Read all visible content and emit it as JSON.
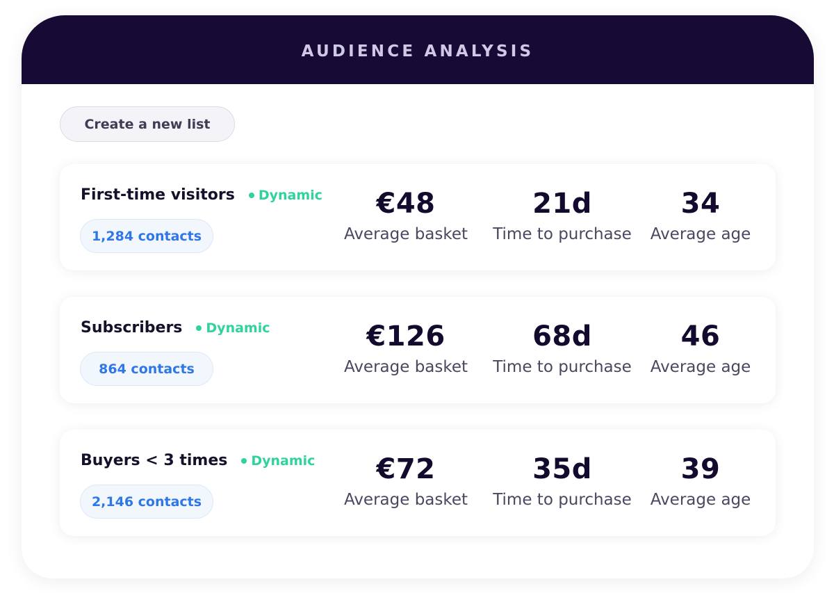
{
  "header": {
    "title": "AUDIENCE ANALYSIS"
  },
  "toolbar": {
    "create_list_label": "Create a new list"
  },
  "segments": [
    {
      "name": "First-time visitors",
      "tag": "Dynamic",
      "contacts": "1,284 contacts",
      "metrics": [
        {
          "value": "€48",
          "label": "Average basket"
        },
        {
          "value": "21d",
          "label": "Time to purchase"
        },
        {
          "value": "34",
          "label": "Average age"
        }
      ]
    },
    {
      "name": "Subscribers",
      "tag": "Dynamic",
      "contacts": "864 contacts",
      "metrics": [
        {
          "value": "€126",
          "label": "Average basket"
        },
        {
          "value": "68d",
          "label": "Time to purchase"
        },
        {
          "value": "46",
          "label": "Average age"
        }
      ]
    },
    {
      "name": "Buyers < 3 times",
      "tag": "Dynamic",
      "contacts": "2,146 contacts",
      "metrics": [
        {
          "value": "€72",
          "label": "Average basket"
        },
        {
          "value": "35d",
          "label": "Time to purchase"
        },
        {
          "value": "39",
          "label": "Average age"
        }
      ]
    }
  ],
  "colors": {
    "header_bg": "#170a35",
    "dynamic_green": "#2fd39b",
    "contacts_blue": "#2e77e5"
  }
}
